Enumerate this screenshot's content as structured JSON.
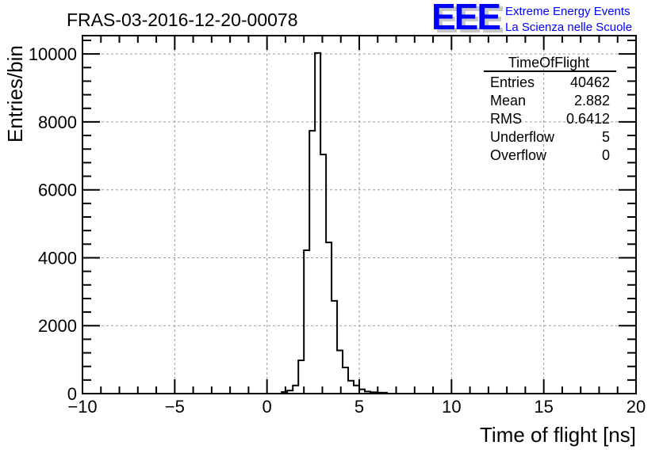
{
  "logo": {
    "text": "EEE",
    "line1": "Extreme Energy Events",
    "line2": "La Scienza nelle Scuole",
    "color": "#0000ff"
  },
  "stats": {
    "title": "TimeOfFlight",
    "rows": [
      {
        "label": "Entries",
        "value": "40462"
      },
      {
        "label": "Mean",
        "value": "2.882"
      },
      {
        "label": "RMS",
        "value": "0.6412"
      },
      {
        "label": "Underflow",
        "value": "5"
      },
      {
        "label": "Overflow",
        "value": "0"
      }
    ]
  },
  "chart_data": {
    "type": "bar",
    "histogram": true,
    "title": "FRAS-03-2016-12-20-00078",
    "xlabel": "Time of flight [ns]",
    "ylabel": "Entries/bin",
    "xlim": [
      -10,
      20
    ],
    "ylim": [
      0,
      10540
    ],
    "xticks": [
      -10,
      -5,
      0,
      5,
      10,
      15,
      20
    ],
    "xtick_labels": [
      "−10",
      "−5",
      "0",
      "5",
      "10",
      "15",
      "20"
    ],
    "yticks": [
      0,
      2000,
      4000,
      6000,
      8000,
      10000
    ],
    "ytick_labels": [
      "0",
      "2000",
      "4000",
      "6000",
      "8000",
      "10000"
    ],
    "grid": true,
    "bin_width": 0.3,
    "bin_start": 0.8,
    "values": [
      50,
      90,
      240,
      980,
      4220,
      7740,
      10030,
      7040,
      4450,
      2730,
      1270,
      770,
      380,
      240,
      125,
      60,
      40,
      30,
      25
    ],
    "line_color": "#000000"
  }
}
